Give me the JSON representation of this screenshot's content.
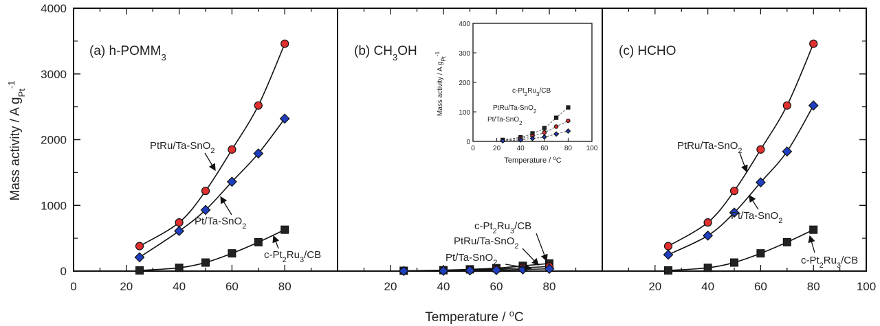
{
  "figure": {
    "ylabel": "Mass activity / A g",
    "ylabel_sub": "Pt",
    "ylabel_sup": "-1",
    "xlabel": "Temperature / ",
    "xlabel_sup": "o",
    "xlabel_unit": "C"
  },
  "colors": {
    "series_red": "#e03030",
    "series_blue": "#1f3fbf",
    "series_black": "#222222",
    "axis": "#111111"
  },
  "chart_data": [
    {
      "type": "scatter",
      "panel_label": "(a) h-POMM",
      "panel_label_sub": "3",
      "xlim": [
        0,
        100
      ],
      "ylim": [
        0,
        4000
      ],
      "y_ticks": [
        0,
        1000,
        2000,
        3000,
        4000
      ],
      "x_ticks": [
        0,
        20,
        40,
        60,
        80
      ],
      "series": [
        {
          "name": "PtRu/Ta-SnO2",
          "marker": "circle",
          "color": "#e03030",
          "x": [
            25,
            40,
            50,
            60,
            70,
            80
          ],
          "values": [
            380,
            740,
            1220,
            1850,
            2520,
            3460
          ]
        },
        {
          "name": "Pt/Ta-SnO2",
          "marker": "diamond",
          "color": "#1f3fbf",
          "x": [
            25,
            40,
            50,
            60,
            70,
            80
          ],
          "values": [
            210,
            610,
            930,
            1360,
            1790,
            2320
          ]
        },
        {
          "name": "c-Pt2Ru3/CB",
          "marker": "square",
          "color": "#222222",
          "x": [
            25,
            40,
            50,
            60,
            70,
            80
          ],
          "values": [
            10,
            50,
            130,
            270,
            440,
            630
          ]
        }
      ],
      "labels": [
        {
          "parts": [
            "PtRu/Ta-SnO",
            "2"
          ]
        },
        {
          "parts": [
            "Pt/Ta-SnO",
            "2"
          ]
        },
        {
          "parts": [
            "c-Pt",
            "2",
            "Ru",
            "3",
            "/CB"
          ]
        }
      ]
    },
    {
      "type": "scatter",
      "panel_label": "(b) CH",
      "panel_label_sub": "3",
      "panel_label_rest": "OH",
      "xlim": [
        0,
        100
      ],
      "ylim": [
        0,
        4000
      ],
      "x_ticks": [
        20,
        40,
        60,
        80
      ],
      "series": [
        {
          "name": "c-Pt2Ru3/CB",
          "marker": "square",
          "color": "#222222",
          "x": [
            25,
            40,
            50,
            60,
            70,
            80
          ],
          "values": [
            5,
            14,
            27,
            45,
            80,
            115
          ]
        },
        {
          "name": "PtRu/Ta-SnO2",
          "marker": "circle",
          "color": "#e03030",
          "x": [
            25,
            40,
            50,
            60,
            70,
            80
          ],
          "values": [
            4,
            10,
            18,
            30,
            50,
            70
          ]
        },
        {
          "name": "Pt/Ta-SnO2",
          "marker": "diamond",
          "color": "#1f3fbf",
          "x": [
            25,
            40,
            50,
            60,
            70,
            80
          ],
          "values": [
            2,
            5,
            10,
            15,
            25,
            35
          ]
        }
      ],
      "labels": [
        {
          "parts": [
            "c-Pt",
            "2",
            "Ru",
            "3",
            "/CB"
          ]
        },
        {
          "parts": [
            "PtRu/Ta-SnO",
            "2"
          ]
        },
        {
          "parts": [
            "Pt/Ta-SnO",
            "2"
          ]
        }
      ],
      "inset": {
        "xlim": [
          0,
          100
        ],
        "ylim": [
          0,
          400
        ],
        "x_ticks": [
          0,
          20,
          40,
          60,
          80,
          100
        ],
        "y_ticks": [
          0,
          100,
          200,
          300,
          400
        ],
        "ylabel": "Mass activity / A g",
        "ylabel_sub": "Pt",
        "ylabel_sup": "-1",
        "xlabel": "Temperature / ",
        "xlabel_sup": "o",
        "xlabel_unit": "C"
      }
    },
    {
      "type": "scatter",
      "panel_label": "(c) HCHO",
      "xlim": [
        0,
        100
      ],
      "ylim": [
        0,
        4000
      ],
      "x_ticks": [
        20,
        40,
        60,
        80,
        100
      ],
      "series": [
        {
          "name": "PtRu/Ta-SnO2",
          "marker": "circle",
          "color": "#e03030",
          "x": [
            25,
            40,
            50,
            60,
            70,
            80
          ],
          "values": [
            380,
            740,
            1220,
            1850,
            2520,
            3460
          ]
        },
        {
          "name": "Pt/Ta-SnO2",
          "marker": "diamond",
          "color": "#1f3fbf",
          "x": [
            25,
            40,
            50,
            60,
            70,
            80
          ],
          "values": [
            250,
            540,
            890,
            1350,
            1820,
            2520
          ]
        },
        {
          "name": "c-Pt2Ru3/CB",
          "marker": "square",
          "color": "#222222",
          "x": [
            25,
            40,
            50,
            60,
            70,
            80
          ],
          "values": [
            10,
            50,
            130,
            270,
            440,
            630
          ]
        }
      ],
      "labels": [
        {
          "parts": [
            "PtRu/Ta-SnO",
            "2"
          ]
        },
        {
          "parts": [
            "Pt/Ta-SnO",
            "2"
          ]
        },
        {
          "parts": [
            "c-Pt",
            "2",
            "Ru",
            "3",
            "/CB"
          ]
        }
      ]
    }
  ]
}
